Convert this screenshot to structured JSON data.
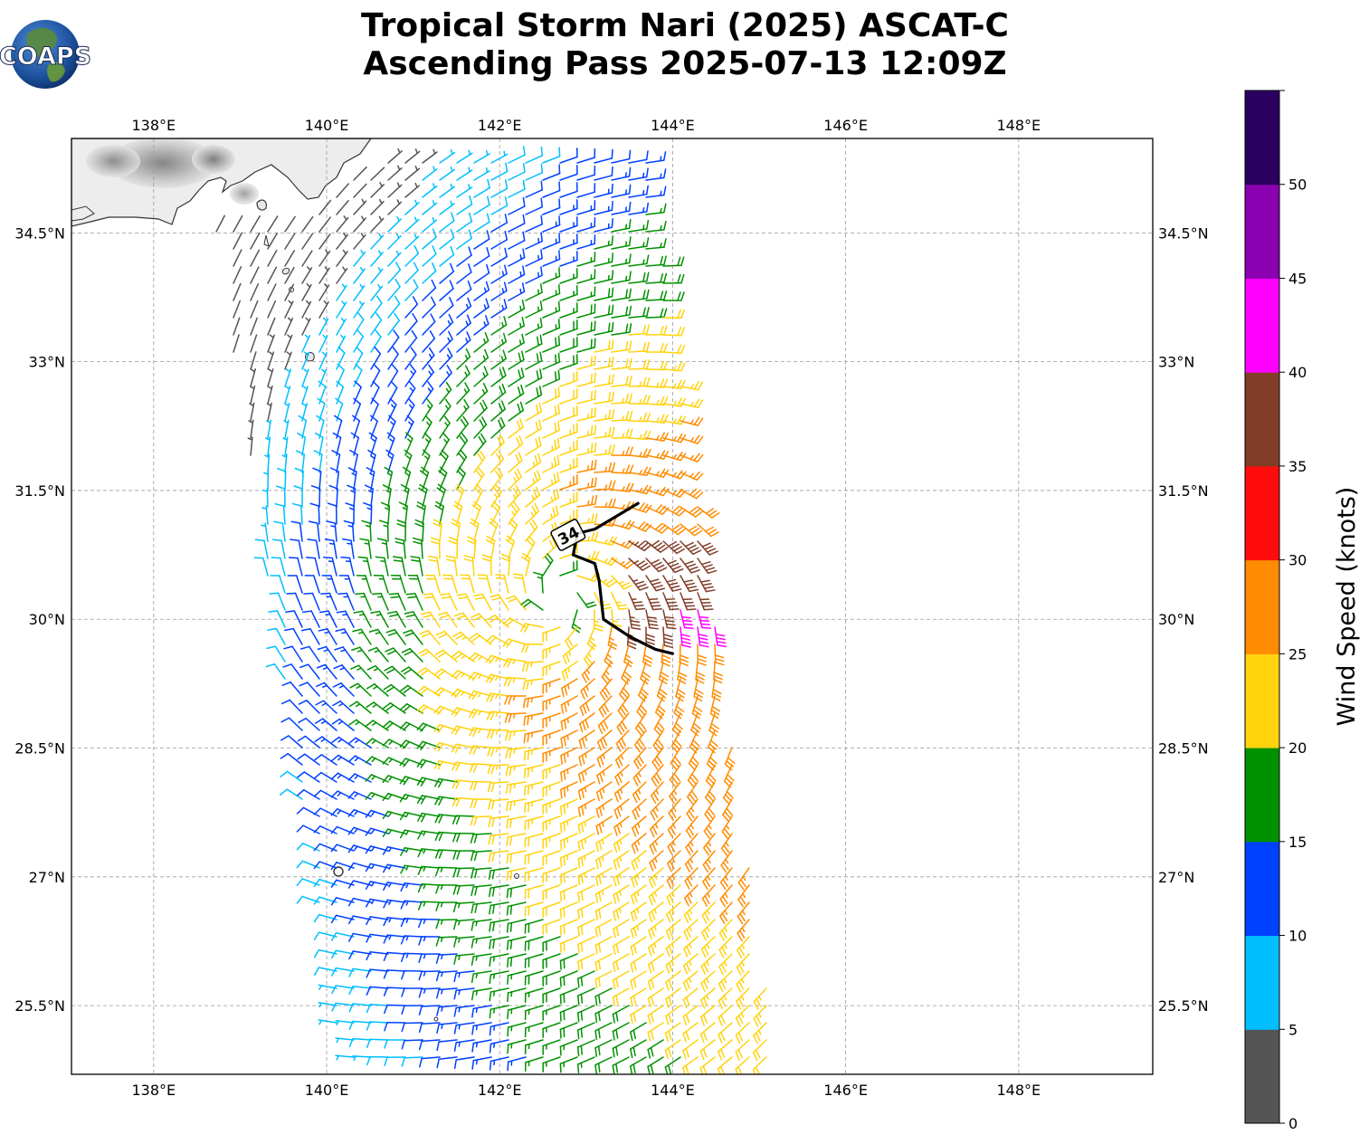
{
  "title": {
    "line1": "Tropical Storm Nari (2025) ASCAT-C",
    "line2": "Ascending Pass 2025-07-13 12:09Z"
  },
  "logo": {
    "text": "COAPS",
    "name": "coaps-globe-logo"
  },
  "map": {
    "lon_range": [
      137.05,
      149.55
    ],
    "lat_range": [
      24.7,
      35.6
    ],
    "lon_ticks": [
      {
        "value": 138,
        "label": "138°E"
      },
      {
        "value": 140,
        "label": "140°E"
      },
      {
        "value": 142,
        "label": "142°E"
      },
      {
        "value": 144,
        "label": "144°E"
      },
      {
        "value": 146,
        "label": "146°E"
      },
      {
        "value": 148,
        "label": "148°E"
      }
    ],
    "lat_ticks": [
      {
        "value": 34.5,
        "label": "34.5°N"
      },
      {
        "value": 33.0,
        "label": "33°N"
      },
      {
        "value": 31.5,
        "label": "31.5°N"
      },
      {
        "value": 30.0,
        "label": "30°N"
      },
      {
        "value": 28.5,
        "label": "28.5°N"
      },
      {
        "value": 27.0,
        "label": "27°N"
      },
      {
        "value": 25.5,
        "label": "25.5°N"
      }
    ],
    "gridlines": true
  },
  "storm": {
    "center_lon": 142.7,
    "center_lat": 30.25,
    "contour_label": "34",
    "contour_34kt": [
      [
        143.6,
        31.35
      ],
      [
        143.1,
        31.05
      ],
      [
        142.9,
        31.0
      ],
      [
        142.85,
        30.75
      ],
      [
        143.1,
        30.65
      ],
      [
        143.15,
        30.45
      ],
      [
        143.2,
        30.0
      ],
      [
        143.5,
        29.8
      ],
      [
        143.8,
        29.65
      ],
      [
        144.0,
        29.6
      ]
    ]
  },
  "swath": {
    "corners": [
      [
        140.7,
        35.45
      ],
      [
        143.7,
        35.45
      ],
      [
        145.25,
        24.7
      ],
      [
        140.2,
        24.7
      ]
    ],
    "left_edge_upper": [
      [
        138.7,
        34.55
      ],
      [
        139.7,
        34.6
      ],
      [
        140.7,
        35.45
      ]
    ]
  },
  "colorbar": {
    "label": "Wind Speed (knots)",
    "bins": [
      {
        "min": 0,
        "max": 5,
        "color": "#555555"
      },
      {
        "min": 5,
        "max": 10,
        "color": "#00bfff"
      },
      {
        "min": 10,
        "max": 15,
        "color": "#0040ff"
      },
      {
        "min": 15,
        "max": 20,
        "color": "#009100"
      },
      {
        "min": 20,
        "max": 25,
        "color": "#ffd30e"
      },
      {
        "min": 25,
        "max": 30,
        "color": "#ff8c00"
      },
      {
        "min": 30,
        "max": 35,
        "color": "#ff0d0d"
      },
      {
        "min": 35,
        "max": 40,
        "color": "#823d28"
      },
      {
        "min": 40,
        "max": 45,
        "color": "#ff00ff"
      },
      {
        "min": 45,
        "max": 50,
        "color": "#8b00b0"
      },
      {
        "min": 50,
        "max": 55,
        "color": "#2b0060"
      }
    ],
    "ticks": [
      "0",
      "5",
      "10",
      "15",
      "20",
      "25",
      "30",
      "35",
      "40",
      "45",
      "50"
    ]
  }
}
